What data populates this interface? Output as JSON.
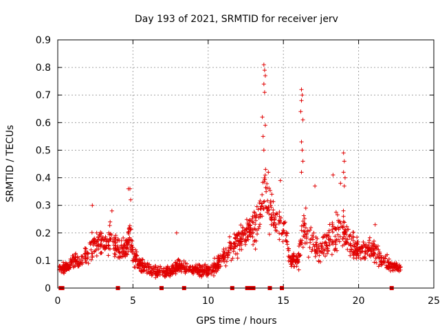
{
  "chart_data": {
    "type": "scatter",
    "title": "Day 193 of 2021, SRMTID for receiver jerv",
    "xlabel": "GPS time / hours",
    "ylabel": "SRMTID / TECUs",
    "xlim": [
      0,
      25
    ],
    "ylim": [
      0,
      0.9
    ],
    "xticks": [
      "0",
      "5",
      "10",
      "15",
      "20",
      "25"
    ],
    "yticks": [
      "0",
      "0.1",
      "0.2",
      "0.3",
      "0.4",
      "0.5",
      "0.6",
      "0.7",
      "0.8",
      "0.9"
    ],
    "grid": true,
    "color": "#e00000",
    "envelope": [
      [
        0.1,
        0.05,
        0.09
      ],
      [
        0.5,
        0.05,
        0.1
      ],
      [
        1.0,
        0.06,
        0.13
      ],
      [
        1.5,
        0.06,
        0.13
      ],
      [
        2.0,
        0.07,
        0.18
      ],
      [
        2.5,
        0.08,
        0.24
      ],
      [
        3.0,
        0.09,
        0.22
      ],
      [
        3.5,
        0.09,
        0.27
      ],
      [
        4.0,
        0.08,
        0.2
      ],
      [
        4.5,
        0.08,
        0.2
      ],
      [
        4.8,
        0.1,
        0.28
      ],
      [
        5.0,
        0.06,
        0.2
      ],
      [
        5.5,
        0.04,
        0.12
      ],
      [
        6.0,
        0.03,
        0.1
      ],
      [
        6.5,
        0.03,
        0.09
      ],
      [
        7.0,
        0.03,
        0.09
      ],
      [
        7.5,
        0.03,
        0.09
      ],
      [
        8.0,
        0.04,
        0.12
      ],
      [
        8.5,
        0.04,
        0.1
      ],
      [
        9.0,
        0.04,
        0.1
      ],
      [
        9.5,
        0.03,
        0.1
      ],
      [
        10.0,
        0.03,
        0.1
      ],
      [
        10.5,
        0.04,
        0.12
      ],
      [
        11.0,
        0.06,
        0.16
      ],
      [
        11.5,
        0.09,
        0.2
      ],
      [
        12.0,
        0.1,
        0.24
      ],
      [
        12.5,
        0.13,
        0.26
      ],
      [
        13.0,
        0.12,
        0.3
      ],
      [
        13.5,
        0.17,
        0.38
      ],
      [
        13.8,
        0.22,
        0.5
      ],
      [
        14.0,
        0.18,
        0.4
      ],
      [
        14.5,
        0.16,
        0.34
      ],
      [
        15.0,
        0.14,
        0.32
      ],
      [
        15.5,
        0.06,
        0.14
      ],
      [
        16.0,
        0.06,
        0.15
      ],
      [
        16.3,
        0.1,
        0.36
      ],
      [
        16.5,
        0.1,
        0.3
      ],
      [
        17.0,
        0.07,
        0.25
      ],
      [
        17.5,
        0.07,
        0.22
      ],
      [
        18.0,
        0.09,
        0.27
      ],
      [
        18.5,
        0.1,
        0.3
      ],
      [
        19.0,
        0.1,
        0.3
      ],
      [
        19.5,
        0.09,
        0.22
      ],
      [
        20.0,
        0.09,
        0.2
      ],
      [
        20.5,
        0.08,
        0.18
      ],
      [
        21.0,
        0.07,
        0.2
      ],
      [
        21.5,
        0.06,
        0.16
      ],
      [
        22.0,
        0.05,
        0.12
      ],
      [
        22.5,
        0.05,
        0.1
      ],
      [
        22.8,
        0.05,
        0.09
      ]
    ],
    "peaks": [
      {
        "x": 2.3,
        "y": 0.3
      },
      {
        "x": 3.6,
        "y": 0.28
      },
      {
        "x": 4.7,
        "y": 0.36
      },
      {
        "x": 4.8,
        "y": 0.36
      },
      {
        "x": 4.85,
        "y": 0.32
      },
      {
        "x": 7.9,
        "y": 0.2
      },
      {
        "x": 13.7,
        "y": 0.81
      },
      {
        "x": 13.75,
        "y": 0.79
      },
      {
        "x": 13.8,
        "y": 0.77
      },
      {
        "x": 13.7,
        "y": 0.74
      },
      {
        "x": 13.75,
        "y": 0.71
      },
      {
        "x": 13.6,
        "y": 0.62
      },
      {
        "x": 13.8,
        "y": 0.59
      },
      {
        "x": 13.65,
        "y": 0.55
      },
      {
        "x": 13.7,
        "y": 0.5
      },
      {
        "x": 14.0,
        "y": 0.42
      },
      {
        "x": 14.8,
        "y": 0.39
      },
      {
        "x": 16.2,
        "y": 0.72
      },
      {
        "x": 16.25,
        "y": 0.7
      },
      {
        "x": 16.2,
        "y": 0.68
      },
      {
        "x": 16.15,
        "y": 0.64
      },
      {
        "x": 16.3,
        "y": 0.61
      },
      {
        "x": 16.2,
        "y": 0.53
      },
      {
        "x": 16.25,
        "y": 0.5
      },
      {
        "x": 16.3,
        "y": 0.46
      },
      {
        "x": 16.2,
        "y": 0.42
      },
      {
        "x": 17.1,
        "y": 0.37
      },
      {
        "x": 18.3,
        "y": 0.41
      },
      {
        "x": 18.8,
        "y": 0.38
      },
      {
        "x": 19.0,
        "y": 0.49
      },
      {
        "x": 19.05,
        "y": 0.46
      },
      {
        "x": 19.0,
        "y": 0.42
      },
      {
        "x": 19.1,
        "y": 0.4
      },
      {
        "x": 19.05,
        "y": 0.37
      },
      {
        "x": 21.1,
        "y": 0.23
      }
    ],
    "gap_markers_x": [
      0.2,
      0.3,
      4.0,
      6.9,
      8.4,
      11.6,
      12.6,
      12.8,
      12.9,
      13.0,
      14.1,
      14.9,
      22.2
    ]
  }
}
